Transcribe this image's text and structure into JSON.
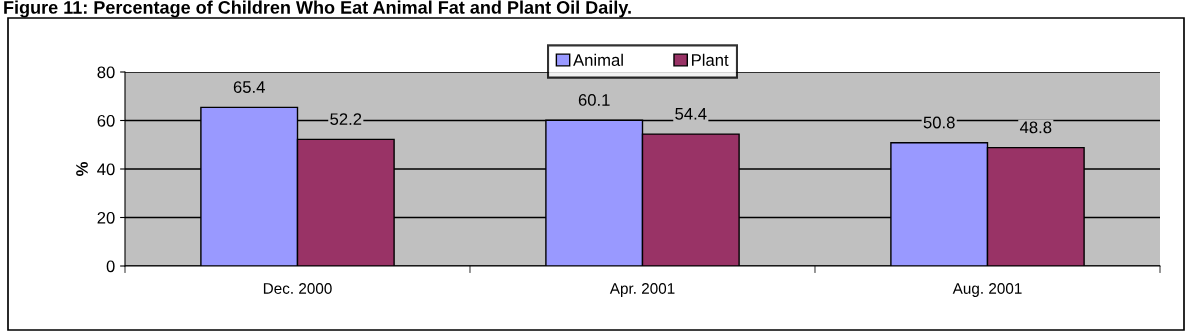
{
  "chart_data": {
    "type": "bar",
    "title": "Figure 11: Percentage of Children Who Eat Animal Fat and Plant Oil Daily.",
    "ylabel": "%",
    "categories": [
      "Dec. 2000",
      "Apr. 2001",
      "Aug. 2001"
    ],
    "series": [
      {
        "name": "Animal",
        "color": "#9999ff",
        "values": [
          65.4,
          60.1,
          50.8
        ]
      },
      {
        "name": "Plant",
        "color": "#993366",
        "values": [
          52.2,
          54.4,
          48.8
        ]
      }
    ],
    "ylim": [
      0,
      80
    ],
    "yticks": [
      0,
      20,
      40,
      60,
      80
    ],
    "grid": "y",
    "legend": "top",
    "data_labels": true
  }
}
